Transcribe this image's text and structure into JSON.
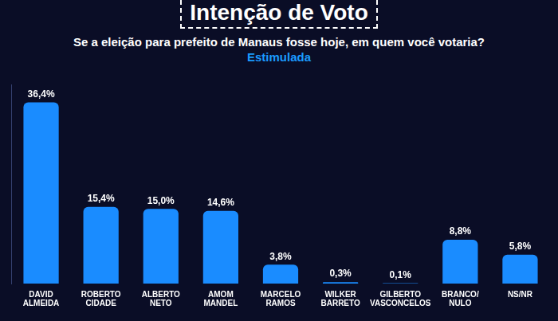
{
  "chart_data": {
    "type": "bar",
    "title": "Intenção de Voto",
    "subtitle": "Se a eleição para prefeito de Manaus fosse hoje, em quem você votaria?",
    "annotations": [
      "Estimulada"
    ],
    "categories": [
      [
        "DAVID",
        "ALMEIDA"
      ],
      [
        "ROBERTO",
        "CIDADE"
      ],
      [
        "ALBERTO",
        "NETO"
      ],
      [
        "AMOM",
        "MANDEL"
      ],
      [
        "MARCELO",
        "RAMOS"
      ],
      [
        "WILKER",
        "BARRETO"
      ],
      [
        "GILBERTO",
        "VASCONCELOS"
      ],
      [
        "BRANCO/",
        "NULO"
      ],
      [
        "NS/NR"
      ]
    ],
    "values": [
      36.4,
      15.4,
      15.0,
      14.6,
      3.8,
      0.3,
      0.1,
      8.8,
      5.8
    ],
    "value_labels": [
      "36,4%",
      "15,4%",
      "15,0%",
      "14,6%",
      "3,8%",
      "0,3%",
      "0,1%",
      "8,8%",
      "5,8%"
    ],
    "color": "#1a8cff",
    "ylim": [
      0,
      40
    ],
    "yticks": [],
    "grid": false,
    "data_labels": true,
    "tick_labels": "x"
  }
}
